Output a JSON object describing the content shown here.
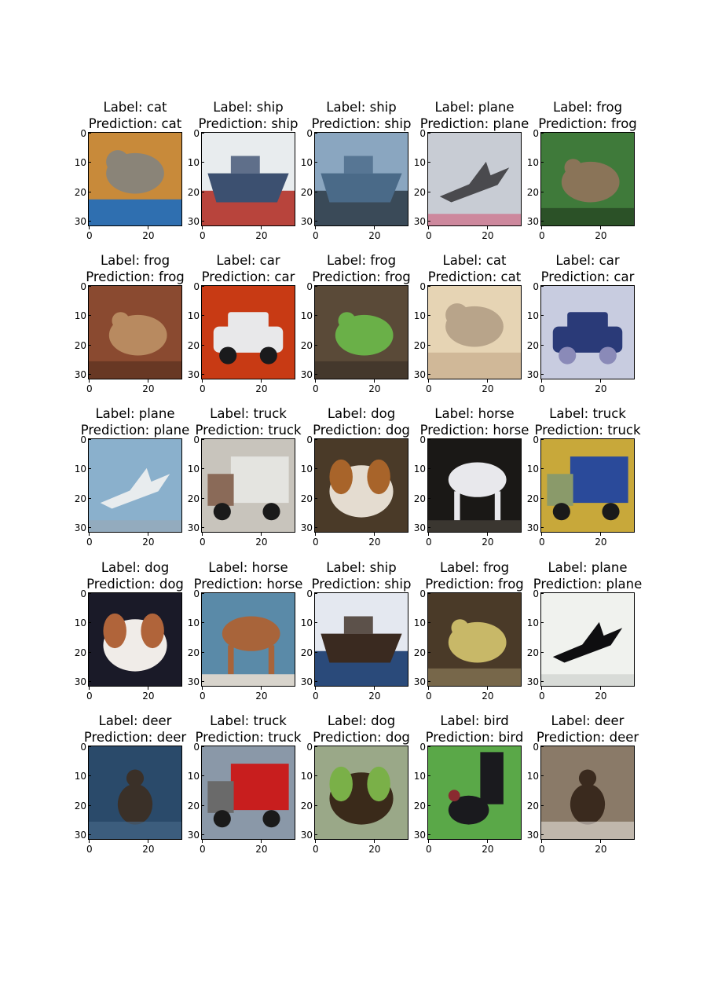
{
  "figure": {
    "label_prefix": "Label: ",
    "prediction_prefix": "Prediction: ",
    "y_ticks": [
      "0",
      "10",
      "20",
      "30"
    ],
    "x_ticks": [
      "0",
      "20"
    ],
    "panels": [
      {
        "label": "cat",
        "prediction": "cat",
        "scene": "cat",
        "colors": [
          "#c88a3a",
          "#8a8478",
          "#2f6fb0"
        ]
      },
      {
        "label": "ship",
        "prediction": "ship",
        "scene": "ship",
        "colors": [
          "#e8ecee",
          "#3c5070",
          "#b8443c"
        ]
      },
      {
        "label": "ship",
        "prediction": "ship",
        "scene": "ship",
        "colors": [
          "#8aa6c0",
          "#4a6a88",
          "#3a4a58"
        ]
      },
      {
        "label": "plane",
        "prediction": "plane",
        "scene": "plane",
        "colors": [
          "#c8ccd4",
          "#4a4a4e",
          "#d05a78"
        ]
      },
      {
        "label": "frog",
        "prediction": "frog",
        "scene": "frog",
        "colors": [
          "#3f7a3a",
          "#8a7458",
          "#24401f"
        ]
      },
      {
        "label": "frog",
        "prediction": "frog",
        "scene": "frog",
        "colors": [
          "#8a4a30",
          "#b88a60",
          "#5a3020"
        ]
      },
      {
        "label": "car",
        "prediction": "car",
        "scene": "car",
        "colors": [
          "#c83a14",
          "#e8e8ea",
          "#1a1a1c"
        ]
      },
      {
        "label": "frog",
        "prediction": "frog",
        "scene": "frog",
        "colors": [
          "#5a4a38",
          "#6ab048",
          "#3a3028"
        ]
      },
      {
        "label": "cat",
        "prediction": "cat",
        "scene": "cat",
        "colors": [
          "#e6d4b4",
          "#b8a48a",
          "#d0b898"
        ]
      },
      {
        "label": "car",
        "prediction": "car",
        "scene": "car",
        "colors": [
          "#c8cce0",
          "#2a3a78",
          "#8a8ab8"
        ]
      },
      {
        "label": "plane",
        "prediction": "plane",
        "scene": "plane",
        "colors": [
          "#8ab0cc",
          "#e8ecee",
          "#9aa8b4"
        ]
      },
      {
        "label": "truck",
        "prediction": "truck",
        "scene": "truck",
        "colors": [
          "#c8c4bc",
          "#e4e4e0",
          "#8a6a58"
        ]
      },
      {
        "label": "dog",
        "prediction": "dog",
        "scene": "dog",
        "colors": [
          "#4a3a28",
          "#e4dcd0",
          "#a8642a"
        ]
      },
      {
        "label": "horse",
        "prediction": "horse",
        "scene": "horse",
        "colors": [
          "#1a1816",
          "#e8e8ec",
          "#3a3630"
        ]
      },
      {
        "label": "truck",
        "prediction": "truck",
        "scene": "truck",
        "colors": [
          "#c8a83a",
          "#2a4a9a",
          "#8a9a6a"
        ]
      },
      {
        "label": "dog",
        "prediction": "dog",
        "scene": "dog",
        "colors": [
          "#1a1a28",
          "#f0ece8",
          "#b0643a"
        ]
      },
      {
        "label": "horse",
        "prediction": "horse",
        "scene": "horse",
        "colors": [
          "#5a8aa8",
          "#a8643a",
          "#d8d4cc"
        ]
      },
      {
        "label": "ship",
        "prediction": "ship",
        "scene": "ship",
        "colors": [
          "#e4e8f0",
          "#3a2a20",
          "#2a4a7a"
        ]
      },
      {
        "label": "frog",
        "prediction": "frog",
        "scene": "frog",
        "colors": [
          "#4a3a28",
          "#c8b868",
          "#8a7a58"
        ]
      },
      {
        "label": "plane",
        "prediction": "plane",
        "scene": "plane",
        "colors": [
          "#f0f2ee",
          "#0e0e10",
          "#c8ccc8"
        ]
      },
      {
        "label": "deer",
        "prediction": "deer",
        "scene": "deer",
        "colors": [
          "#2a4a6a",
          "#3a3028",
          "#4a6a8a"
        ]
      },
      {
        "label": "truck",
        "prediction": "truck",
        "scene": "truck",
        "colors": [
          "#8a98a8",
          "#c81e1e",
          "#6a6a6a"
        ]
      },
      {
        "label": "dog",
        "prediction": "dog",
        "scene": "dog",
        "colors": [
          "#9aa888",
          "#3a2a1a",
          "#7ab048"
        ]
      },
      {
        "label": "bird",
        "prediction": "bird",
        "scene": "bird",
        "colors": [
          "#5aa848",
          "#1a1a1e",
          "#8a2a30"
        ]
      },
      {
        "label": "deer",
        "prediction": "deer",
        "scene": "deer",
        "colors": [
          "#8a7a68",
          "#3a2a1e",
          "#e4e0da"
        ]
      }
    ]
  }
}
